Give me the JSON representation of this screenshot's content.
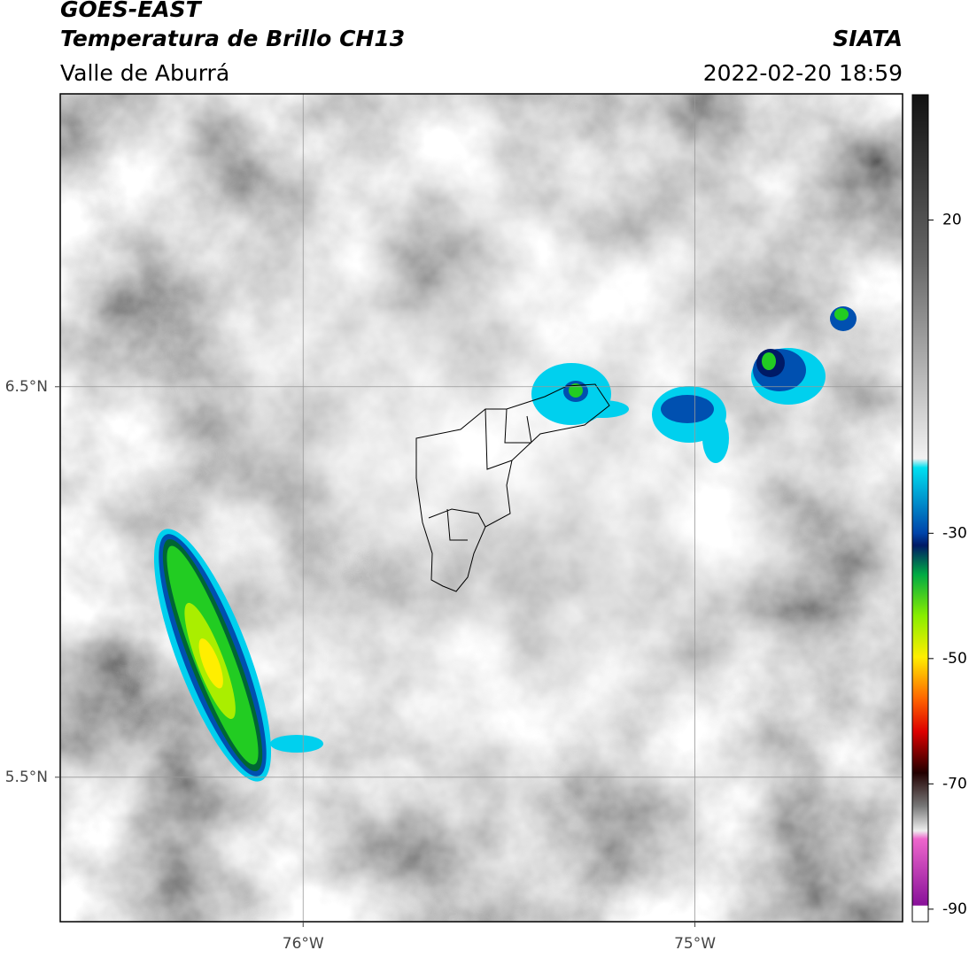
{
  "header": {
    "satellite": "GOES-EAST",
    "product": "Temperatura de Brillo CH13",
    "region": "Valle de Aburrá",
    "source": "SIATA",
    "timestamp": "2022-02-20 18:59"
  },
  "map": {
    "xlim": [
      -76.62,
      -74.47
    ],
    "ylim": [
      5.13,
      7.25
    ],
    "xticks": [
      {
        "value": -76,
        "label": "76°W"
      },
      {
        "value": -75,
        "label": "75°W"
      }
    ],
    "yticks": [
      {
        "value": 5.5,
        "label": "5.5°N"
      },
      {
        "value": 6.5,
        "label": "6.5°N"
      }
    ],
    "grid": true
  },
  "colorbar": {
    "lim": [
      -92,
      40
    ],
    "ticks": [
      20,
      -30,
      -50,
      -70,
      -90
    ]
  }
}
